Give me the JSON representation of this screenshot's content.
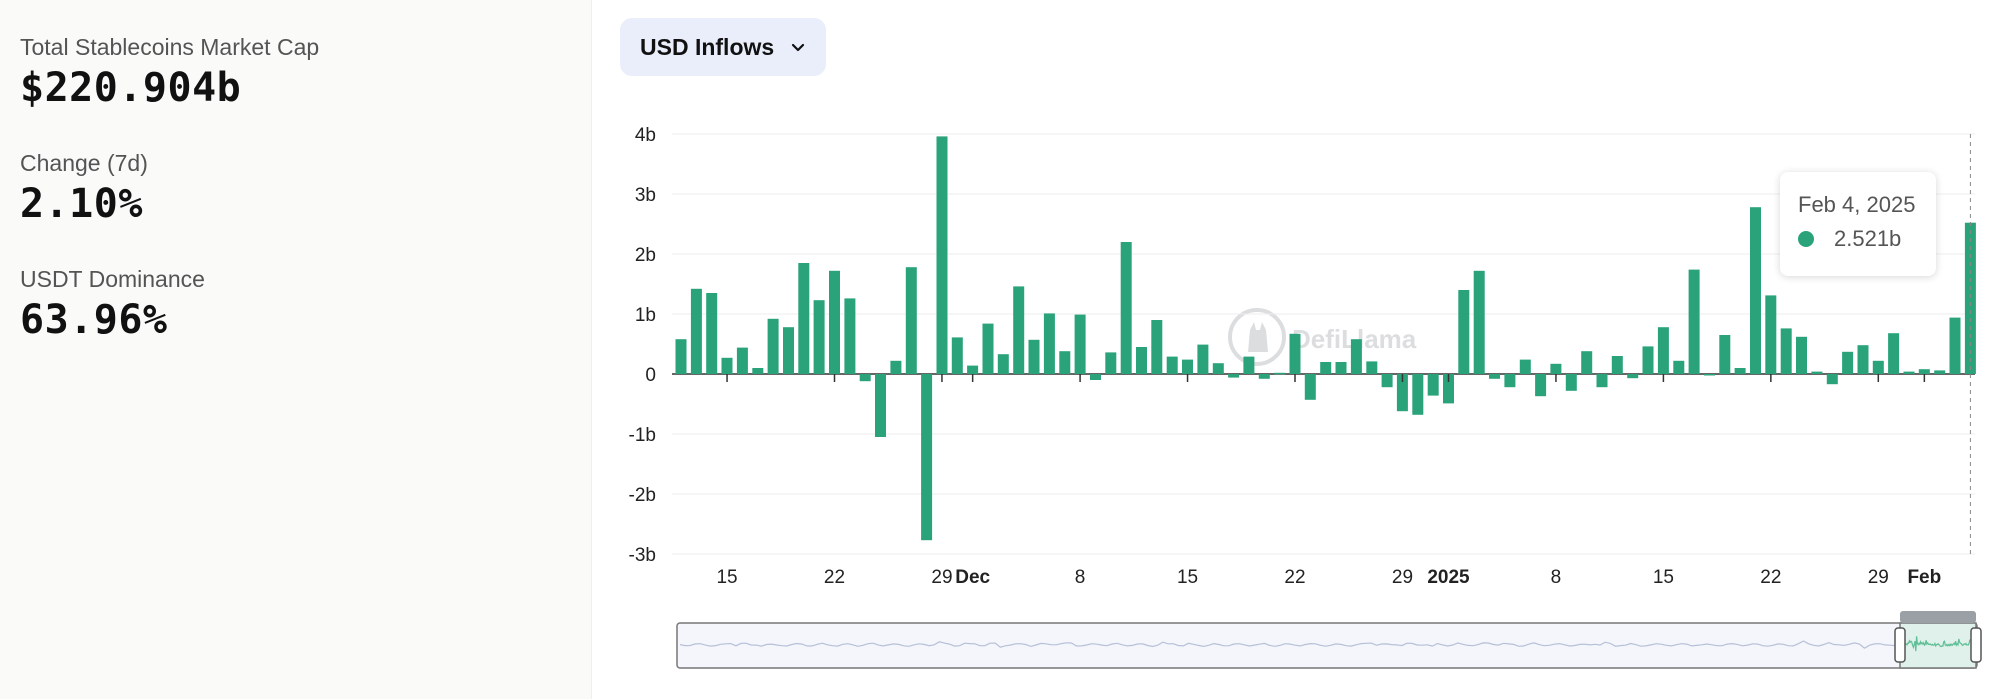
{
  "stats": {
    "market_cap": {
      "label": "Total Stablecoins Market Cap",
      "value": "$220.904b"
    },
    "change": {
      "label": "Change (7d)",
      "value": "2.10%"
    },
    "dominance": {
      "label": "USDT Dominance",
      "value": "63.96%"
    }
  },
  "dropdown": {
    "label": "USD Inflows",
    "icon": "chevron-down-icon"
  },
  "tooltip": {
    "date": "Feb 4, 2025",
    "value": "2.521b"
  },
  "watermark": {
    "text": "DefiLlama",
    "icon": "llama-logo-icon"
  },
  "colors": {
    "bar": "#2aa37a",
    "grid": "#eeeeee",
    "brush": "#dff1ea"
  },
  "chart_data": {
    "type": "bar",
    "title": "USD Inflows",
    "ylabel": "",
    "xlabel": "",
    "ylim": [
      -3,
      4
    ],
    "yticks": [
      {
        "value": 4,
        "label": "4b"
      },
      {
        "value": 3,
        "label": "3b"
      },
      {
        "value": 2,
        "label": "2b"
      },
      {
        "value": 1,
        "label": "1b"
      },
      {
        "value": 0,
        "label": "0"
      },
      {
        "value": -1,
        "label": "-1b"
      },
      {
        "value": -2,
        "label": "-2b"
      },
      {
        "value": -3,
        "label": "-3b"
      }
    ],
    "start_date": "Nov 12, 2024",
    "values": [
      0.58,
      1.42,
      1.35,
      0.27,
      0.44,
      0.1,
      0.92,
      0.78,
      1.85,
      1.23,
      1.72,
      1.26,
      -0.12,
      -1.05,
      0.22,
      1.78,
      -2.77,
      3.96,
      0.61,
      0.14,
      0.84,
      0.33,
      1.46,
      0.57,
      1.01,
      0.38,
      0.99,
      -0.1,
      0.36,
      2.2,
      0.45,
      0.9,
      0.29,
      0.24,
      0.49,
      0.18,
      -0.06,
      0.29,
      -0.08,
      0.02,
      0.67,
      -0.43,
      0.2,
      0.2,
      0.58,
      0.21,
      -0.22,
      -0.62,
      -0.68,
      -0.36,
      -0.49,
      1.4,
      1.72,
      -0.08,
      -0.22,
      0.24,
      -0.37,
      0.17,
      -0.28,
      0.38,
      -0.22,
      0.3,
      -0.07,
      0.46,
      0.78,
      0.22,
      1.74,
      -0.02,
      0.65,
      0.1,
      2.78,
      1.31,
      0.76,
      0.62,
      0.04,
      -0.17,
      0.37,
      0.48,
      0.22,
      0.68,
      0.04,
      0.08,
      0.06,
      0.94,
      2.521
    ],
    "x_ticks": [
      {
        "index": 3,
        "label": "15",
        "bold": false
      },
      {
        "index": 10,
        "label": "22",
        "bold": false
      },
      {
        "index": 17,
        "label": "29",
        "bold": false
      },
      {
        "index": 19,
        "label": "Dec",
        "bold": true
      },
      {
        "index": 26,
        "label": "8",
        "bold": false
      },
      {
        "index": 33,
        "label": "15",
        "bold": false
      },
      {
        "index": 40,
        "label": "22",
        "bold": false
      },
      {
        "index": 47,
        "label": "29",
        "bold": false
      },
      {
        "index": 50,
        "label": "2025",
        "bold": true
      },
      {
        "index": 57,
        "label": "8",
        "bold": false
      },
      {
        "index": 64,
        "label": "15",
        "bold": false
      },
      {
        "index": 71,
        "label": "22",
        "bold": false
      },
      {
        "index": 78,
        "label": "29",
        "bold": false
      },
      {
        "index": 81,
        "label": "Feb",
        "bold": true
      }
    ],
    "highlight_index": 84
  }
}
